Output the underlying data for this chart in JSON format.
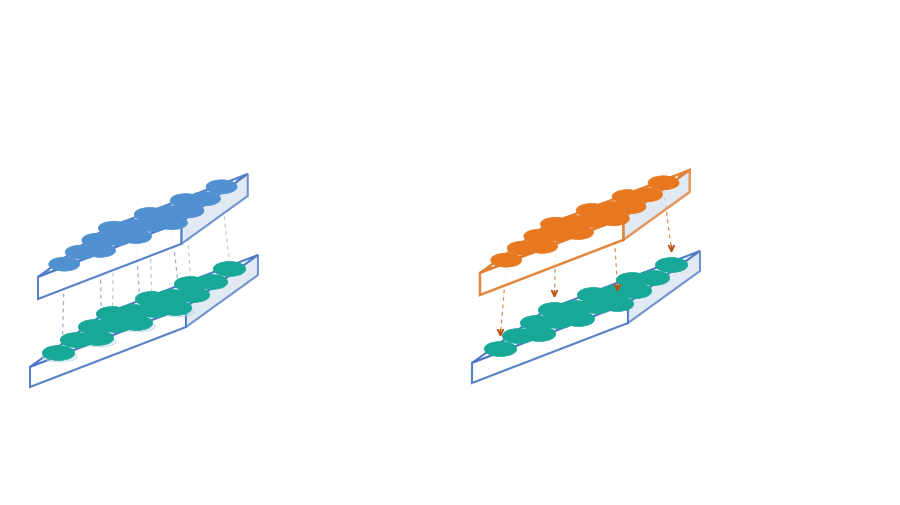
{
  "background_color": "#ffffff",
  "blue_edge": "#4472C4",
  "orange_edge": "#E07828",
  "teal_pad": "#18A898",
  "blue_pad": "#5090D0",
  "orange_pad": "#E87820",
  "dashed_blue": "#8090B8",
  "dashed_orange": "#C86820",
  "arrow_orange": "#B85010",
  "shadow_color": "#B8D8E0",
  "figsize": [
    9.0,
    5.06
  ],
  "dpi": 100
}
